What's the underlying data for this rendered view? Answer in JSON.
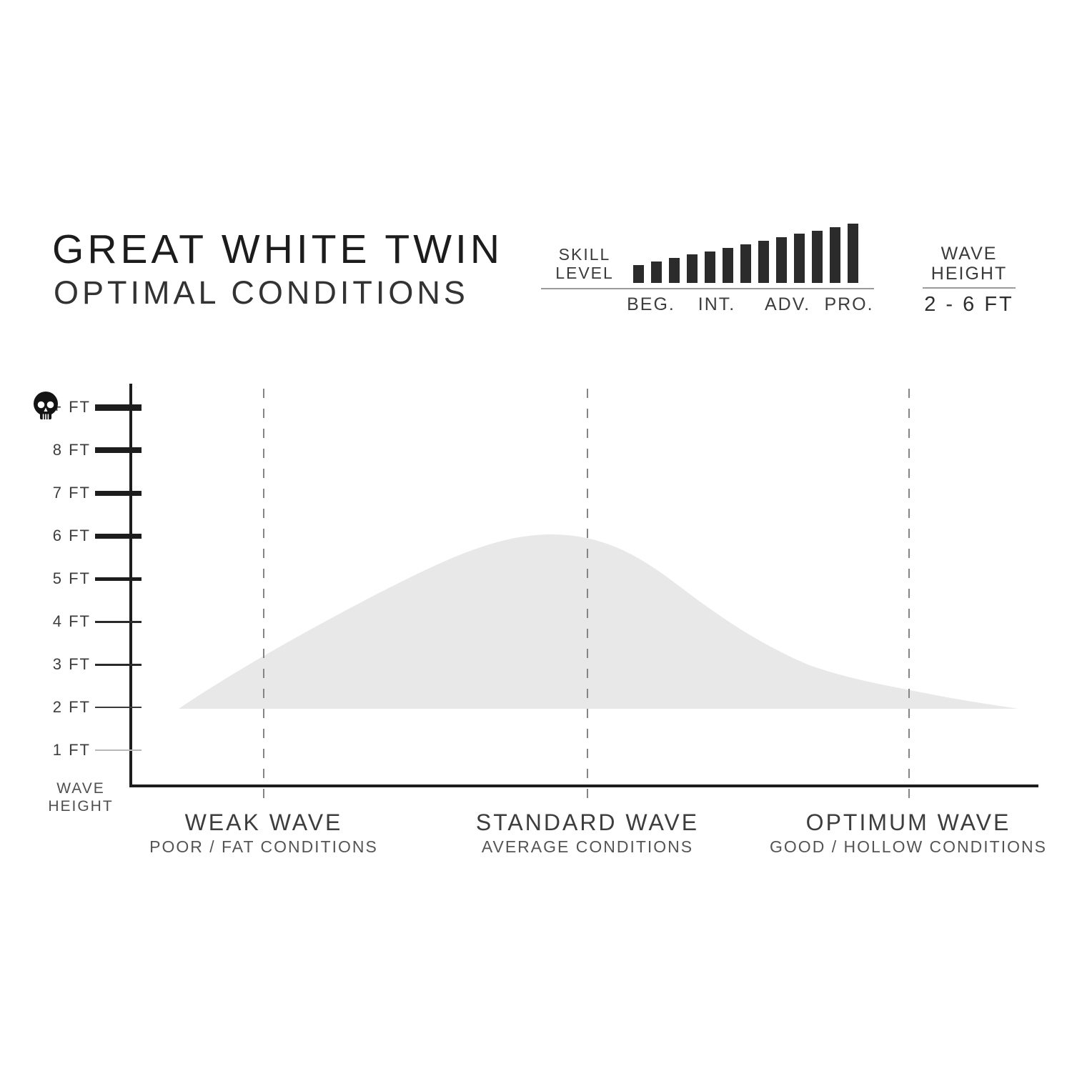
{
  "header": {
    "title": "GREAT WHITE TWIN",
    "subtitle": "OPTIMAL CONDITIONS"
  },
  "skill": {
    "label_line1": "SKILL",
    "label_line2": "LEVEL",
    "bar_count": 13,
    "levels": [
      "BEG.",
      "INT.",
      "ADV.",
      "PRO."
    ]
  },
  "wave_box": {
    "label_line1": "WAVE",
    "label_line2": "HEIGHT",
    "range": "2 - 6 FT"
  },
  "chart_data": {
    "type": "area",
    "title": "GREAT WHITE TWIN — OPTIMAL CONDITIONS",
    "ylabel_line1": "WAVE",
    "ylabel_line2": "HEIGHT",
    "y_unit": "FT",
    "yticks": [
      "+ FT",
      "8 FT",
      "7 FT",
      "6 FT",
      "5 FT",
      "4 FT",
      "3 FT",
      "2 FT",
      "1 FT"
    ],
    "baseline_ft": 2,
    "peak_ft": 6,
    "wave_height_range": "2 - 6 FT",
    "series": [
      {
        "name": "optimal wave height window",
        "x_frac": [
          0,
          0.1,
          0.23,
          0.32,
          0.44,
          0.49,
          0.6,
          0.72,
          0.87,
          1.0
        ],
        "ft": [
          2.0,
          3.2,
          4.6,
          5.3,
          6.0,
          6.0,
          4.8,
          3.2,
          2.4,
          2.0
        ]
      }
    ],
    "zones": [
      {
        "label": "WEAK WAVE",
        "sublabel": "POOR / FAT CONDITIONS",
        "ft_at_line": 3.2
      },
      {
        "label": "STANDARD WAVE",
        "sublabel": "AVERAGE CONDITIONS",
        "ft_at_line": 6.0
      },
      {
        "label": "OPTIMUM WAVE",
        "sublabel": "GOOD / HOLLOW CONDITIONS",
        "ft_at_line": 2.4
      }
    ],
    "annotations": {
      "skull_tick": "+ FT"
    },
    "legend": "none",
    "grid": "off"
  },
  "colors": {
    "ink": "#1d1d1d",
    "area_fill": "#e8e8e8",
    "dash": "#858585",
    "bar": "#2b2b2b",
    "rule": "#9a9a9a",
    "tick_light": "#b8b8b8",
    "muted": "#555555"
  }
}
